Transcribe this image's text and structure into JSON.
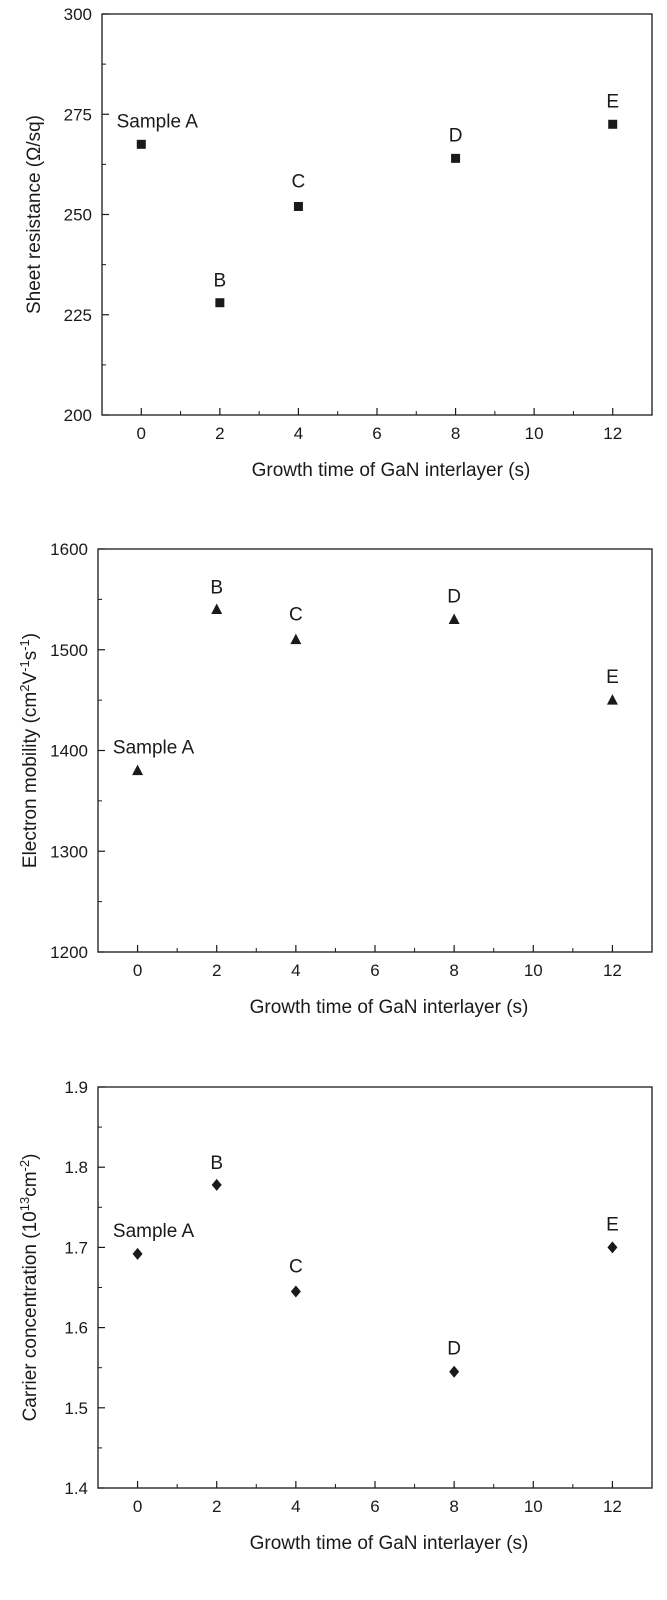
{
  "chart_data": [
    {
      "type": "scatter",
      "xlabel": "Growth time of GaN interlayer (s)",
      "ylabel": "Sheet resistance (Ω/sq)",
      "xlim": [
        -1,
        13
      ],
      "ylim": [
        200,
        300
      ],
      "xticks": [
        0,
        2,
        4,
        6,
        8,
        10,
        12
      ],
      "yticks": [
        200,
        225,
        250,
        275,
        300
      ],
      "marker": "square",
      "color": "#1a1a1a",
      "points": [
        {
          "x": 0,
          "y": 267.5,
          "label": "Sample A"
        },
        {
          "x": 2,
          "y": 228,
          "label": "B"
        },
        {
          "x": 4,
          "y": 252,
          "label": "C"
        },
        {
          "x": 8,
          "y": 264,
          "label": "D"
        },
        {
          "x": 12,
          "y": 272.5,
          "label": "E"
        }
      ]
    },
    {
      "type": "scatter",
      "xlabel": "Growth time of GaN interlayer (s)",
      "ylabel": {
        "prefix": "Electron mobility (cm",
        "sup1": "2",
        "mid1": "V",
        "sup2": "-1",
        "mid2": "s",
        "sup3": "-1",
        "suffix": ")"
      },
      "xlim": [
        -1,
        13
      ],
      "ylim": [
        1200,
        1600
      ],
      "xticks": [
        0,
        2,
        4,
        6,
        8,
        10,
        12
      ],
      "yticks": [
        1200,
        1300,
        1400,
        1500,
        1600
      ],
      "marker": "triangle",
      "color": "#1a1a1a",
      "points": [
        {
          "x": 0,
          "y": 1380,
          "label": "Sample A"
        },
        {
          "x": 2,
          "y": 1540,
          "label": "B"
        },
        {
          "x": 4,
          "y": 1510,
          "label": "C"
        },
        {
          "x": 8,
          "y": 1530,
          "label": "D"
        },
        {
          "x": 12,
          "y": 1450,
          "label": "E"
        }
      ]
    },
    {
      "type": "scatter",
      "xlabel": "Growth time of GaN interlayer (s)",
      "ylabel": {
        "prefix": "Carrier concentration (10",
        "sup1": "13",
        "mid1": "cm",
        "sup2": "-2",
        "suffix": ")"
      },
      "xlim": [
        -1,
        13
      ],
      "ylim": [
        1.4,
        1.9
      ],
      "xticks": [
        0,
        2,
        4,
        6,
        8,
        10,
        12
      ],
      "yticks": [
        1.4,
        1.5,
        1.6,
        1.7,
        1.8,
        1.9
      ],
      "yprecision": 1,
      "marker": "diamond",
      "color": "#1a1a1a",
      "points": [
        {
          "x": 0,
          "y": 1.692,
          "label": "Sample A"
        },
        {
          "x": 2,
          "y": 1.778,
          "label": "B"
        },
        {
          "x": 4,
          "y": 1.645,
          "label": "C"
        },
        {
          "x": 8,
          "y": 1.545,
          "label": "D"
        },
        {
          "x": 12,
          "y": 1.7,
          "label": "E"
        }
      ]
    }
  ]
}
